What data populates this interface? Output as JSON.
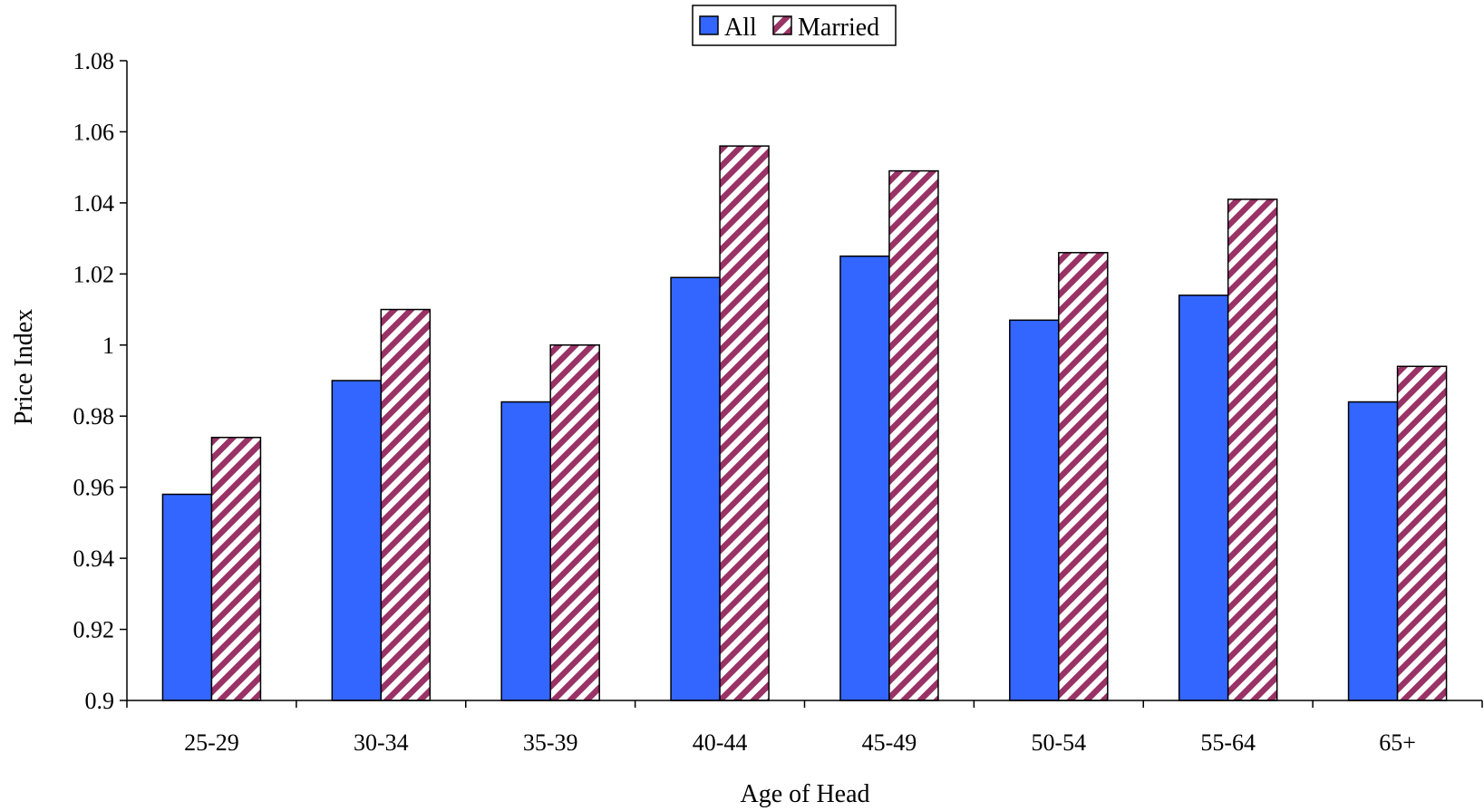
{
  "chart_data": {
    "type": "bar",
    "categories": [
      "25-29",
      "30-34",
      "35-39",
      "40-44",
      "45-49",
      "50-54",
      "55-64",
      "65+"
    ],
    "series": [
      {
        "name": "All",
        "values": [
          0.958,
          0.99,
          0.984,
          1.019,
          1.025,
          1.007,
          1.014,
          0.984
        ],
        "color": "#3366ff",
        "pattern": "solid"
      },
      {
        "name": "Married",
        "values": [
          0.974,
          1.01,
          1.0,
          1.056,
          1.049,
          1.026,
          1.041,
          0.994
        ],
        "color": "#993366",
        "pattern": "diagonal-hatch"
      }
    ],
    "title": "",
    "xlabel": "Age of Head",
    "ylabel": "Price Index",
    "ylim": [
      0.9,
      1.08
    ],
    "yticks": [
      "0.9",
      "0.92",
      "0.94",
      "0.96",
      "0.98",
      "1",
      "1.02",
      "1.04",
      "1.06",
      "1.08"
    ],
    "grid": false,
    "legend_position": "top-center"
  }
}
